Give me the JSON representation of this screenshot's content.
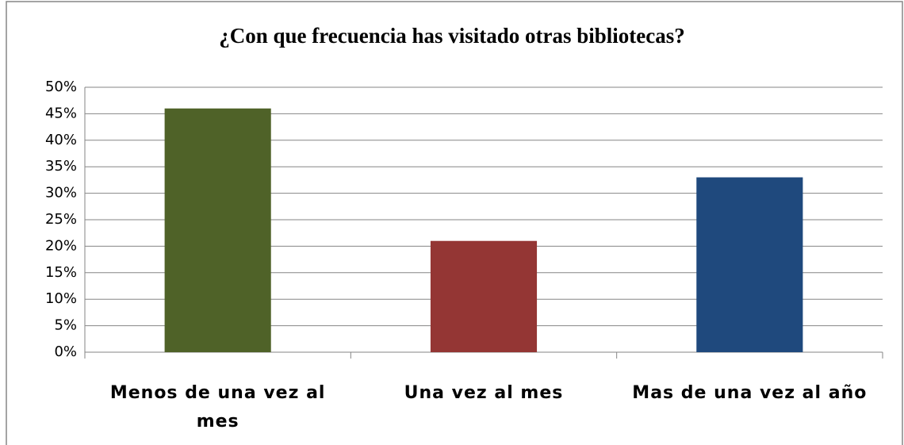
{
  "chart_data": {
    "type": "bar",
    "title": "¿Con que frecuencia has visitado otras bibliotecas?",
    "categories": [
      "Menos de una vez al mes",
      "Una vez al mes",
      "Mas de una vez al año"
    ],
    "values": [
      46,
      21,
      33
    ],
    "colors": [
      "#4f6228",
      "#943634",
      "#1f497d"
    ],
    "ylim": [
      0,
      50
    ],
    "yticks": [
      {
        "value": 0,
        "label": "0%"
      },
      {
        "value": 5,
        "label": "5%"
      },
      {
        "value": 10,
        "label": "10%"
      },
      {
        "value": 15,
        "label": "15%"
      },
      {
        "value": 20,
        "label": "20%"
      },
      {
        "value": 25,
        "label": "25%"
      },
      {
        "value": 30,
        "label": "30%"
      },
      {
        "value": 35,
        "label": "35%"
      },
      {
        "value": 40,
        "label": "40%"
      },
      {
        "value": 45,
        "label": "45%"
      },
      {
        "value": 50,
        "label": "50%"
      }
    ],
    "grid": true
  }
}
